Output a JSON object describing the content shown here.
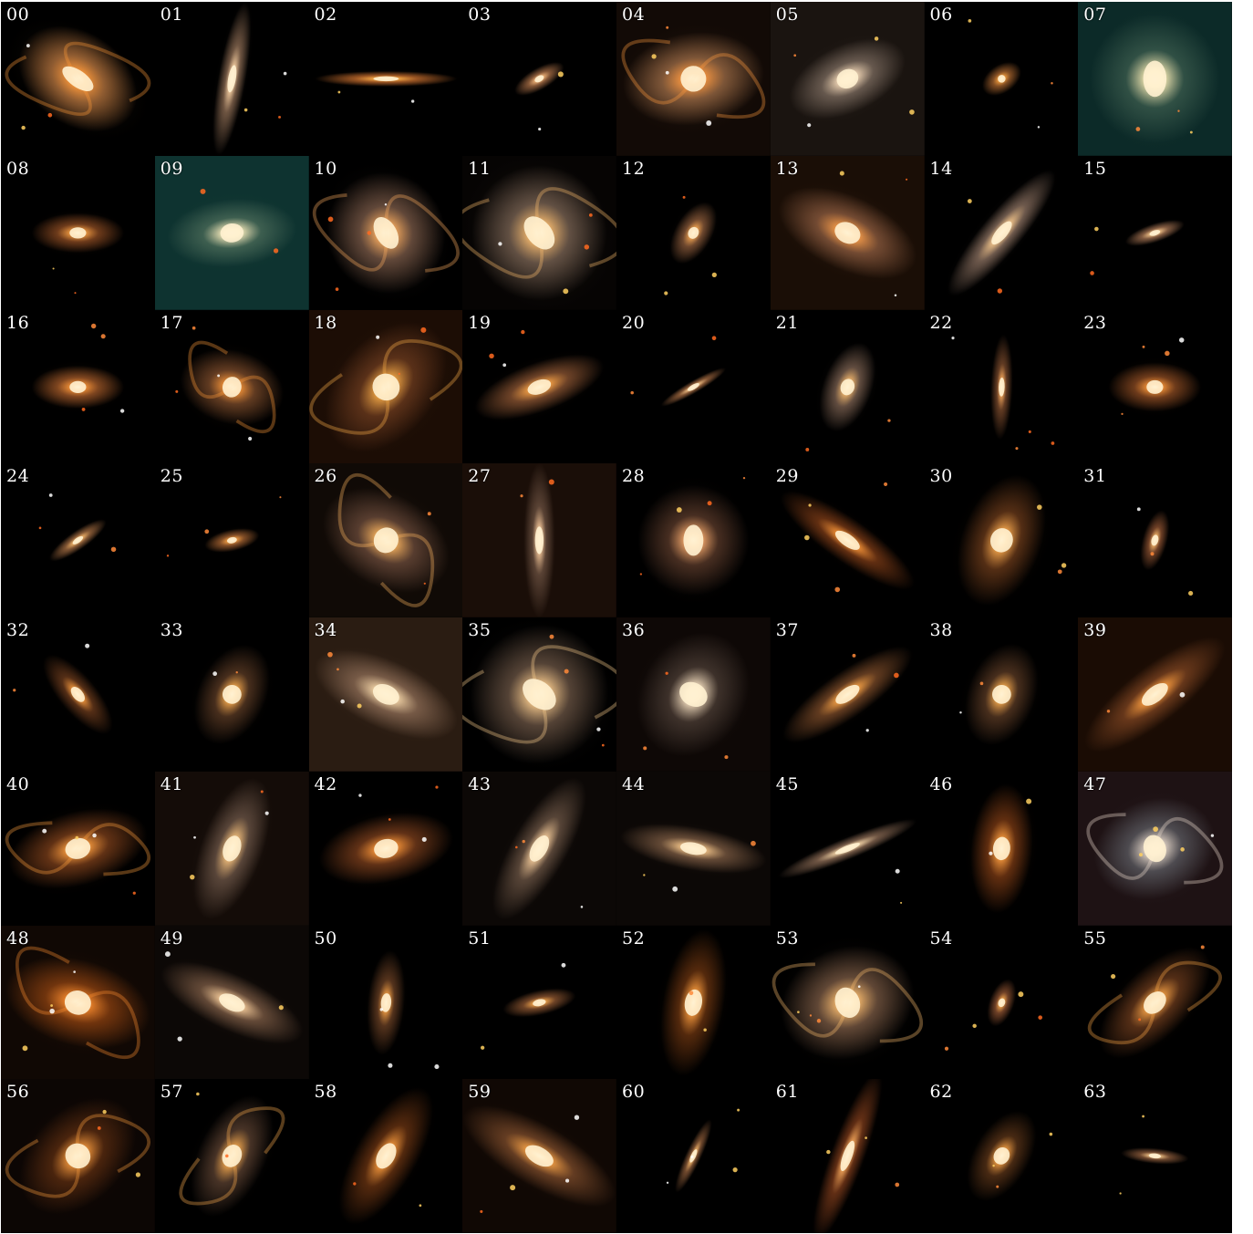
{
  "title": "",
  "tiles": [
    {
      "label": "00",
      "rot": -55,
      "rx": 0.3,
      "ry": 0.42,
      "core": "#ff9a3a",
      "halo": "#b5743e",
      "bg": "#000000",
      "spiral": true
    },
    {
      "label": "01",
      "rot": -80,
      "rx": 0.5,
      "ry": 0.09,
      "core": "#ffd7a8",
      "halo": "#8a6a52",
      "bg": "#000000",
      "spiral": false
    },
    {
      "label": "02",
      "rot": 0,
      "rx": 0.46,
      "ry": 0.05,
      "core": "#ffb34a",
      "halo": "#c06a2c",
      "bg": "#000000",
      "spiral": false
    },
    {
      "label": "03",
      "rot": -30,
      "rx": 0.18,
      "ry": 0.07,
      "core": "#ffc080",
      "halo": "#a36b44",
      "bg": "#000000",
      "spiral": false
    },
    {
      "label": "04",
      "rot": -8,
      "rx": 0.46,
      "ry": 0.3,
      "core": "#ff9a40",
      "halo": "#9a6a45",
      "bg": "#120a06",
      "spiral": true
    },
    {
      "label": "05",
      "rot": -25,
      "rx": 0.4,
      "ry": 0.22,
      "core": "#ffe3c0",
      "halo": "#7a6a5e",
      "bg": "#1a1410",
      "spiral": false
    },
    {
      "label": "06",
      "rot": -35,
      "rx": 0.14,
      "ry": 0.09,
      "core": "#ffa640",
      "halo": "#a0602c",
      "bg": "#000000",
      "spiral": false
    },
    {
      "label": "07",
      "rot": 0,
      "rx": 0.42,
      "ry": 0.42,
      "core": "#fff0b8",
      "halo": "#3a5a4c",
      "bg": "#0c2a28",
      "spiral": false
    },
    {
      "label": "08",
      "rot": 0,
      "rx": 0.3,
      "ry": 0.13,
      "core": "#ffa646",
      "halo": "#8a4a22",
      "bg": "#000000",
      "spiral": false
    },
    {
      "label": "09",
      "rot": -5,
      "rx": 0.42,
      "ry": 0.22,
      "core": "#fff0c0",
      "halo": "#4a6a58",
      "bg": "#0e3330",
      "spiral": false
    },
    {
      "label": "10",
      "rot": -30,
      "rx": 0.38,
      "ry": 0.4,
      "core": "#ffb060",
      "halo": "#7a5a48",
      "bg": "#000000",
      "spiral": true
    },
    {
      "label": "11",
      "rot": -40,
      "rx": 0.44,
      "ry": 0.44,
      "core": "#ffc070",
      "halo": "#7a6454",
      "bg": "#060403",
      "spiral": true
    },
    {
      "label": "12",
      "rot": -60,
      "rx": 0.22,
      "ry": 0.12,
      "core": "#ffae55",
      "halo": "#8a5a3a",
      "bg": "#000000",
      "spiral": false
    },
    {
      "label": "13",
      "rot": 25,
      "rx": 0.48,
      "ry": 0.24,
      "core": "#ffa14a",
      "halo": "#8a5a3e",
      "bg": "#1a0e06",
      "spiral": false
    },
    {
      "label": "14",
      "rot": -50,
      "rx": 0.52,
      "ry": 0.13,
      "core": "#ffcf90",
      "halo": "#8a7060",
      "bg": "#000000",
      "spiral": false
    },
    {
      "label": "15",
      "rot": -18,
      "rx": 0.2,
      "ry": 0.06,
      "core": "#ffcf90",
      "halo": "#a07050",
      "bg": "#000000",
      "spiral": false
    },
    {
      "label": "16",
      "rot": 0,
      "rx": 0.3,
      "ry": 0.14,
      "core": "#ff9a3a",
      "halo": "#a05828",
      "bg": "#000000",
      "spiral": false
    },
    {
      "label": "17",
      "rot": 15,
      "rx": 0.34,
      "ry": 0.24,
      "core": "#ff9a3a",
      "halo": "#7a4a2a",
      "bg": "#000000",
      "spiral": true
    },
    {
      "label": "18",
      "rot": -50,
      "rx": 0.48,
      "ry": 0.32,
      "core": "#ffb24a",
      "halo": "#6a3a1e",
      "bg": "#1c0d05",
      "spiral": true
    },
    {
      "label": "19",
      "rot": -20,
      "rx": 0.44,
      "ry": 0.16,
      "core": "#ffa848",
      "halo": "#8a5432",
      "bg": "#000000",
      "spiral": false
    },
    {
      "label": "20",
      "rot": -30,
      "rx": 0.24,
      "ry": 0.04,
      "core": "#ffcf90",
      "halo": "#a06840",
      "bg": "#000000",
      "spiral": false
    },
    {
      "label": "21",
      "rot": -70,
      "rx": 0.3,
      "ry": 0.16,
      "core": "#ffc070",
      "halo": "#7a6050",
      "bg": "#000000",
      "spiral": false
    },
    {
      "label": "22",
      "rot": -88,
      "rx": 0.34,
      "ry": 0.07,
      "core": "#ffb060",
      "halo": "#7a4a2c",
      "bg": "#000000",
      "spiral": false
    },
    {
      "label": "23",
      "rot": 0,
      "rx": 0.3,
      "ry": 0.16,
      "core": "#ff9a3a",
      "halo": "#8a4a22",
      "bg": "#000000",
      "spiral": false
    },
    {
      "label": "24",
      "rot": -35,
      "rx": 0.22,
      "ry": 0.06,
      "core": "#ffc070",
      "halo": "#a06a40",
      "bg": "#000000",
      "spiral": false
    },
    {
      "label": "25",
      "rot": -12,
      "rx": 0.18,
      "ry": 0.07,
      "core": "#ffa848",
      "halo": "#a06030",
      "bg": "#000000",
      "spiral": false
    },
    {
      "label": "26",
      "rot": 30,
      "rx": 0.44,
      "ry": 0.3,
      "core": "#ffb860",
      "halo": "#6a4a3a",
      "bg": "#100a06",
      "spiral": true
    },
    {
      "label": "27",
      "rot": -90,
      "rx": 0.5,
      "ry": 0.1,
      "core": "#ffd0a0",
      "halo": "#6a5040",
      "bg": "#1a0e08",
      "spiral": false
    },
    {
      "label": "28",
      "rot": 0,
      "rx": 0.36,
      "ry": 0.36,
      "core": "#ffb070",
      "halo": "#5a3a2a",
      "bg": "#000000",
      "spiral": false
    },
    {
      "label": "29",
      "rot": 35,
      "rx": 0.52,
      "ry": 0.14,
      "core": "#ff9a3a",
      "halo": "#7a3a16",
      "bg": "#000000",
      "spiral": false
    },
    {
      "label": "30",
      "rot": -70,
      "rx": 0.44,
      "ry": 0.26,
      "core": "#ffae50",
      "halo": "#6a3a1a",
      "bg": "#000000",
      "spiral": false
    },
    {
      "label": "31",
      "rot": -75,
      "rx": 0.2,
      "ry": 0.08,
      "core": "#ffc070",
      "halo": "#8a5030",
      "bg": "#000000",
      "spiral": false
    },
    {
      "label": "32",
      "rot": 50,
      "rx": 0.32,
      "ry": 0.12,
      "core": "#ffa040",
      "halo": "#6a3a1c",
      "bg": "#000000",
      "spiral": false
    },
    {
      "label": "33",
      "rot": -65,
      "rx": 0.34,
      "ry": 0.22,
      "core": "#ffb050",
      "halo": "#5a3a24",
      "bg": "#000000",
      "spiral": false
    },
    {
      "label": "34",
      "rot": 25,
      "rx": 0.5,
      "ry": 0.22,
      "core": "#ffe0b0",
      "halo": "#8a6a54",
      "bg": "#2a1c12",
      "spiral": false
    },
    {
      "label": "35",
      "rot": -50,
      "rx": 0.46,
      "ry": 0.44,
      "core": "#ffd090",
      "halo": "#6a5444",
      "bg": "#000000",
      "spiral": true
    },
    {
      "label": "36",
      "rot": -60,
      "rx": 0.42,
      "ry": 0.34,
      "core": "#ffe8c8",
      "halo": "#4a3c34",
      "bg": "#0e0806",
      "spiral": false
    },
    {
      "label": "37",
      "rot": -35,
      "rx": 0.5,
      "ry": 0.15,
      "core": "#ffa848",
      "halo": "#7a4a28",
      "bg": "#000000",
      "spiral": false
    },
    {
      "label": "38",
      "rot": -70,
      "rx": 0.34,
      "ry": 0.22,
      "core": "#ffb050",
      "halo": "#5a3a24",
      "bg": "#000000",
      "spiral": false
    },
    {
      "label": "39",
      "rot": -38,
      "rx": 0.56,
      "ry": 0.18,
      "core": "#ffa040",
      "halo": "#7a4220",
      "bg": "#1a0c04",
      "spiral": false
    },
    {
      "label": "40",
      "rot": -15,
      "rx": 0.46,
      "ry": 0.24,
      "core": "#ffa040",
      "halo": "#7a3e1a",
      "bg": "#000000",
      "spiral": true
    },
    {
      "label": "41",
      "rot": -70,
      "rx": 0.48,
      "ry": 0.2,
      "core": "#ffc880",
      "halo": "#6a5446",
      "bg": "#140c08",
      "spiral": false
    },
    {
      "label": "42",
      "rot": -12,
      "rx": 0.44,
      "ry": 0.22,
      "core": "#ff9a3a",
      "halo": "#7a3e1c",
      "bg": "#000000",
      "spiral": false
    },
    {
      "label": "43",
      "rot": -60,
      "rx": 0.52,
      "ry": 0.18,
      "core": "#ffd4a0",
      "halo": "#6a5444",
      "bg": "#0c0806",
      "spiral": false
    },
    {
      "label": "44",
      "rot": 10,
      "rx": 0.48,
      "ry": 0.14,
      "core": "#ffcf90",
      "halo": "#7a5a42",
      "bg": "#0c0806",
      "spiral": false
    },
    {
      "label": "45",
      "rot": -22,
      "rx": 0.48,
      "ry": 0.07,
      "core": "#ffe0b0",
      "halo": "#8a6a54",
      "bg": "#000000",
      "spiral": false
    },
    {
      "label": "46",
      "rot": -85,
      "rx": 0.42,
      "ry": 0.2,
      "core": "#ffa040",
      "halo": "#7a3a14",
      "bg": "#000000",
      "spiral": false
    },
    {
      "label": "47",
      "rot": -20,
      "rx": 0.4,
      "ry": 0.32,
      "core": "#f0e0d0",
      "halo": "#5a5a60",
      "bg": "#1e1214",
      "spiral": true
    },
    {
      "label": "48",
      "rot": 15,
      "rx": 0.48,
      "ry": 0.28,
      "core": "#ff9030",
      "halo": "#8a4010",
      "bg": "#100804",
      "spiral": true
    },
    {
      "label": "49",
      "rot": 25,
      "rx": 0.5,
      "ry": 0.18,
      "core": "#ffd4a0",
      "halo": "#7a5a44",
      "bg": "#0c0806",
      "spiral": false
    },
    {
      "label": "50",
      "rot": -85,
      "rx": 0.34,
      "ry": 0.12,
      "core": "#ffa848",
      "halo": "#6a4024",
      "bg": "#000000",
      "spiral": false
    },
    {
      "label": "51",
      "rot": -12,
      "rx": 0.24,
      "ry": 0.08,
      "core": "#ffb050",
      "halo": "#8a5430",
      "bg": "#000000",
      "spiral": false
    },
    {
      "label": "52",
      "rot": -80,
      "rx": 0.48,
      "ry": 0.2,
      "core": "#ffa040",
      "halo": "#6a3410",
      "bg": "#000000",
      "spiral": false
    },
    {
      "label": "53",
      "rot": -20,
      "rx": 0.44,
      "ry": 0.36,
      "core": "#ffc070",
      "halo": "#7a5a44",
      "bg": "#000000",
      "spiral": true
    },
    {
      "label": "54",
      "rot": -70,
      "rx": 0.16,
      "ry": 0.08,
      "core": "#ffb050",
      "halo": "#8a5030",
      "bg": "#000000",
      "spiral": false
    },
    {
      "label": "55",
      "rot": -45,
      "rx": 0.46,
      "ry": 0.22,
      "core": "#ffa848",
      "halo": "#6a3a1c",
      "bg": "#000000",
      "spiral": true
    },
    {
      "label": "56",
      "rot": -45,
      "rx": 0.44,
      "ry": 0.3,
      "core": "#ffa040",
      "halo": "#5a2c10",
      "bg": "#0c0604",
      "spiral": true
    },
    {
      "label": "57",
      "rot": -65,
      "rx": 0.42,
      "ry": 0.22,
      "core": "#ffb050",
      "halo": "#5a4030",
      "bg": "#000000",
      "spiral": true
    },
    {
      "label": "58",
      "rot": -60,
      "rx": 0.5,
      "ry": 0.2,
      "core": "#ffa040",
      "halo": "#6a3412",
      "bg": "#000000",
      "spiral": false
    },
    {
      "label": "59",
      "rot": 30,
      "rx": 0.56,
      "ry": 0.2,
      "core": "#ffa848",
      "halo": "#7a4a2a",
      "bg": "#100804",
      "spiral": false
    },
    {
      "label": "60",
      "rot": -65,
      "rx": 0.26,
      "ry": 0.05,
      "core": "#ffc070",
      "halo": "#8a5a38",
      "bg": "#000000",
      "spiral": false
    },
    {
      "label": "61",
      "rot": -70,
      "rx": 0.58,
      "ry": 0.11,
      "core": "#ffb060",
      "halo": "#7a3a1a",
      "bg": "#000000",
      "spiral": false
    },
    {
      "label": "62",
      "rot": -60,
      "rx": 0.32,
      "ry": 0.18,
      "core": "#ffa848",
      "halo": "#5a3418",
      "bg": "#000000",
      "spiral": false
    },
    {
      "label": "63",
      "rot": 5,
      "rx": 0.22,
      "ry": 0.05,
      "core": "#ffd090",
      "halo": "#8a5a3a",
      "bg": "#000000",
      "spiral": false
    }
  ]
}
